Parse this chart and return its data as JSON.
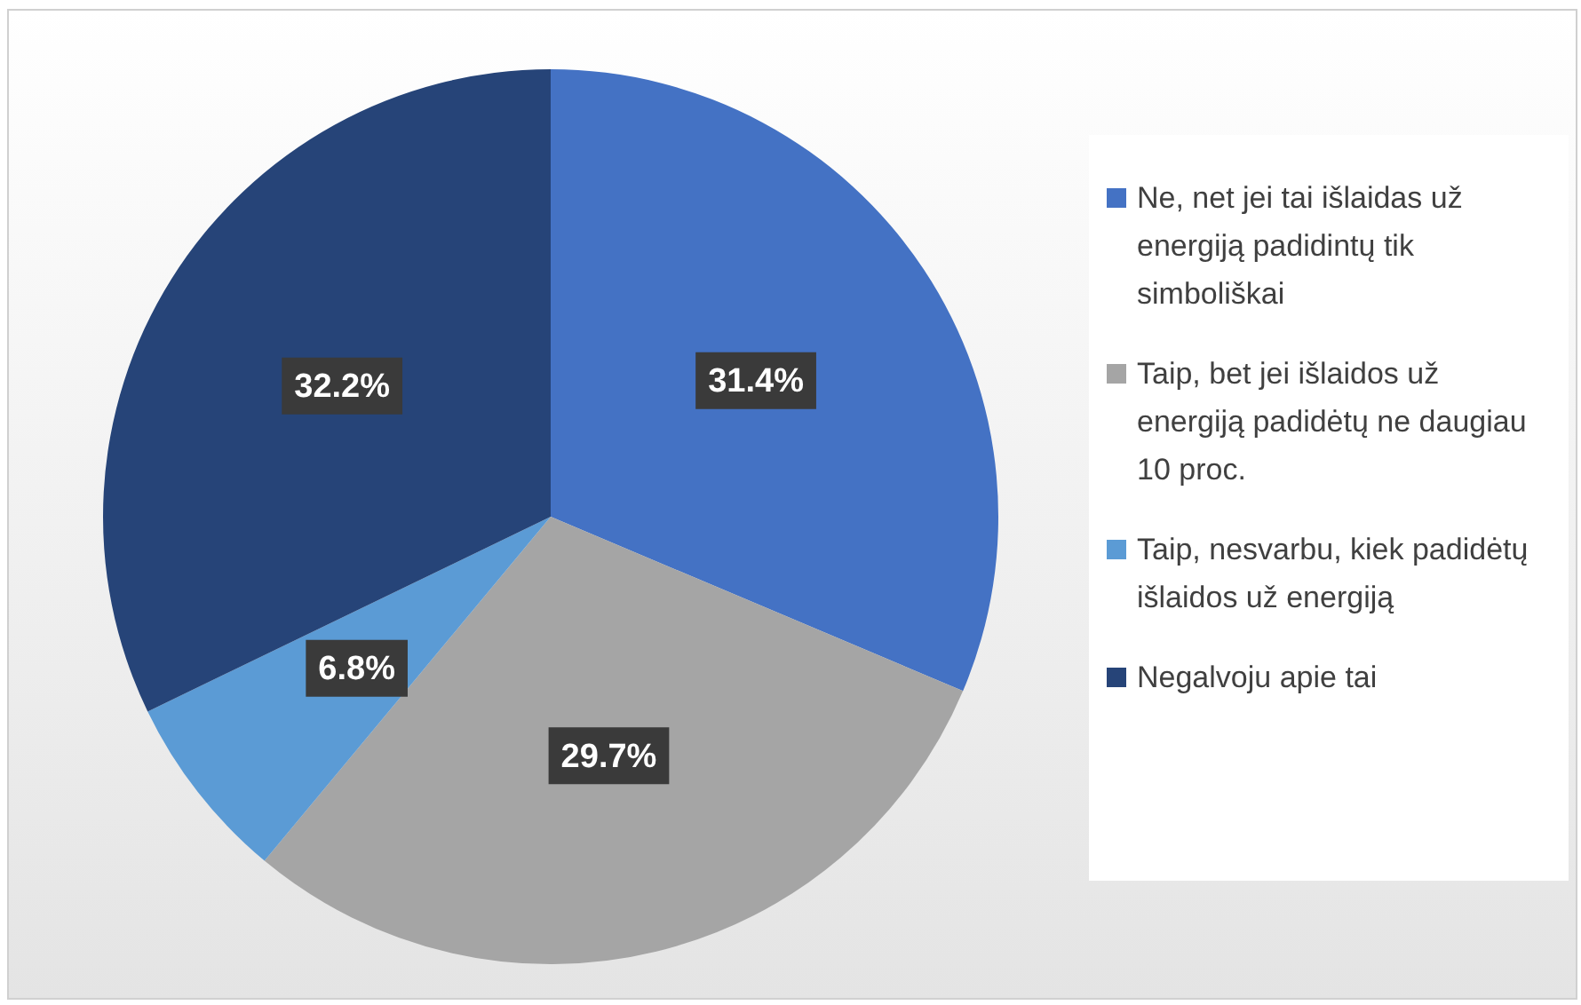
{
  "chart_data": {
    "type": "pie",
    "categories": [
      "Ne, net jei tai išlaidas už energiją padidintų tik simboliškai",
      "Taip, bet jei išlaidos už energiją padidėtų ne daugiau 10 proc.",
      "Taip, nesvarbu, kiek padidėtų išlaidos už energiją",
      "Negalvoju apie tai"
    ],
    "values": [
      31.4,
      29.7,
      6.8,
      32.2
    ],
    "colors": [
      "#4472c4",
      "#a5a5a5",
      "#5b9bd5",
      "#264478"
    ],
    "value_labels": [
      "31.4%",
      "29.7%",
      "6.8%",
      "32.2%"
    ],
    "legend": "right"
  }
}
